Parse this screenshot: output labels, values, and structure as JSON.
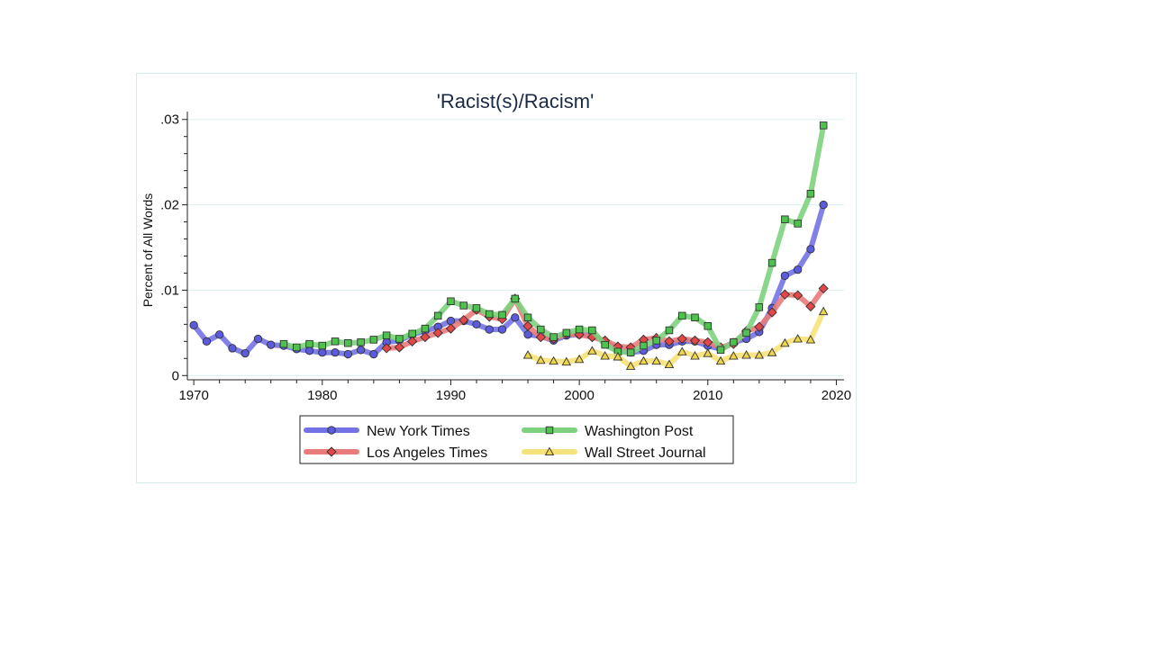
{
  "chart_data": {
    "type": "line",
    "title": "'Racist(s)/Racism'",
    "xlabel": "",
    "ylabel": "Percent of All Words",
    "xlim": [
      1969.5,
      2020.6
    ],
    "ylim": [
      -0.0005,
      0.0305
    ],
    "x_ticks": [
      1970,
      1980,
      1990,
      2000,
      2010,
      2020
    ],
    "x_tick_labels": [
      "1970",
      "1980",
      "1990",
      "2000",
      "2010",
      "2020"
    ],
    "y_ticks": [
      0,
      0.01,
      0.02,
      0.03
    ],
    "y_tick_labels": [
      "0",
      ".01",
      ".02",
      ".03"
    ],
    "grid": true,
    "legend_position": "bottom",
    "series": [
      {
        "name": "New York Times",
        "color": "#7373e6",
        "marker": "circle",
        "marker_fill": "#5b5bdc",
        "x": [
          1970,
          1971,
          1972,
          1973,
          1974,
          1975,
          1976,
          1977,
          1978,
          1979,
          1980,
          1981,
          1982,
          1983,
          1984,
          1985,
          1986,
          1987,
          1988,
          1989,
          1990,
          1991,
          1992,
          1993,
          1994,
          1995,
          1996,
          1997,
          1998,
          1999,
          2000,
          2001,
          2002,
          2003,
          2004,
          2005,
          2006,
          2007,
          2008,
          2009,
          2010,
          2011,
          2012,
          2013,
          2014,
          2015,
          2016,
          2017,
          2018,
          2019
        ],
        "y": [
          0.0059,
          0.004,
          0.0048,
          0.0032,
          0.0026,
          0.0043,
          0.0036,
          0.0035,
          0.0031,
          0.0029,
          0.0027,
          0.0027,
          0.0025,
          0.003,
          0.0025,
          0.0039,
          0.0041,
          0.0048,
          0.0052,
          0.0057,
          0.0064,
          0.0064,
          0.006,
          0.0054,
          0.0054,
          0.0068,
          0.0048,
          0.0046,
          0.0041,
          0.0047,
          0.0048,
          0.0047,
          0.004,
          0.003,
          0.0027,
          0.0029,
          0.0036,
          0.0036,
          0.004,
          0.004,
          0.0035,
          0.0031,
          0.0039,
          0.0043,
          0.0051,
          0.0079,
          0.0117,
          0.0124,
          0.0148,
          0.02
        ]
      },
      {
        "name": "Los Angeles Times",
        "color": "#ea7b7b",
        "marker": "diamond",
        "marker_fill": "#e24848",
        "x": [
          1985,
          1986,
          1987,
          1988,
          1989,
          1990,
          1991,
          1992,
          1993,
          1994,
          1995,
          1996,
          1997,
          1998,
          1999,
          2000,
          2001,
          2002,
          2003,
          2004,
          2005,
          2006,
          2007,
          2008,
          2009,
          2010,
          2011,
          2012,
          2013,
          2014,
          2015,
          2016,
          2017,
          2018,
          2019
        ],
        "y": [
          0.0032,
          0.0033,
          0.004,
          0.0045,
          0.005,
          0.0055,
          0.0065,
          0.0077,
          0.0069,
          0.0066,
          0.009,
          0.0058,
          0.0045,
          0.0043,
          0.0049,
          0.0048,
          0.0045,
          0.0041,
          0.0034,
          0.0033,
          0.0042,
          0.0044,
          0.004,
          0.0043,
          0.0041,
          0.0039,
          0.0033,
          0.0037,
          0.0052,
          0.0057,
          0.0074,
          0.0095,
          0.0094,
          0.0081,
          0.0102
        ]
      },
      {
        "name": "Washington Post",
        "color": "#7dd27d",
        "marker": "square",
        "marker_fill": "#4fc14f",
        "x": [
          1977,
          1978,
          1979,
          1980,
          1981,
          1982,
          1983,
          1984,
          1985,
          1986,
          1987,
          1988,
          1989,
          1990,
          1991,
          1992,
          1993,
          1994,
          1995,
          1996,
          1997,
          1998,
          1999,
          2000,
          2001,
          2002,
          2003,
          2004,
          2005,
          2006,
          2007,
          2008,
          2009,
          2010,
          2011,
          2012,
          2013,
          2014,
          2015,
          2016,
          2017,
          2018,
          2019
        ],
        "y": [
          0.0037,
          0.0033,
          0.0037,
          0.0035,
          0.004,
          0.0038,
          0.0039,
          0.0042,
          0.0047,
          0.0043,
          0.0049,
          0.0055,
          0.007,
          0.0087,
          0.0082,
          0.0079,
          0.0072,
          0.0071,
          0.009,
          0.0068,
          0.0054,
          0.0045,
          0.005,
          0.0054,
          0.0053,
          0.0036,
          0.0028,
          0.0027,
          0.0035,
          0.0041,
          0.0053,
          0.007,
          0.0068,
          0.0058,
          0.003,
          0.0039,
          0.005,
          0.008,
          0.0132,
          0.0183,
          0.0178,
          0.0213,
          0.0293
        ]
      },
      {
        "name": "Wall Street Journal",
        "color": "#f6e27a",
        "marker": "triangle",
        "marker_fill": "#efd44e",
        "x": [
          1996,
          1997,
          1998,
          1999,
          2000,
          2001,
          2002,
          2003,
          2004,
          2005,
          2006,
          2007,
          2008,
          2009,
          2010,
          2011,
          2012,
          2013,
          2014,
          2015,
          2016,
          2017,
          2018,
          2019
        ],
        "y": [
          0.0024,
          0.0018,
          0.0017,
          0.0016,
          0.0019,
          0.0029,
          0.0023,
          0.0022,
          0.0011,
          0.0017,
          0.0017,
          0.0013,
          0.0028,
          0.0023,
          0.0026,
          0.0017,
          0.0023,
          0.0024,
          0.0024,
          0.0027,
          0.0038,
          0.0043,
          0.0042,
          0.0075
        ]
      }
    ]
  }
}
